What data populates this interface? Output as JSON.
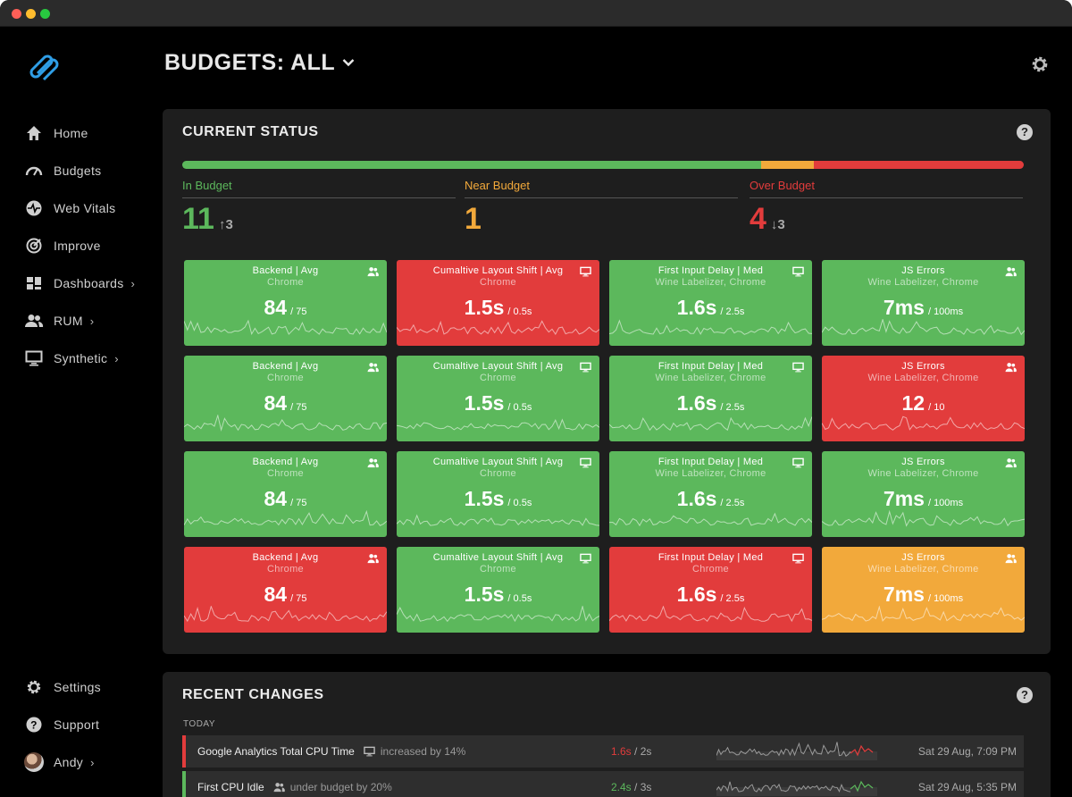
{
  "header": {
    "title": "BUDGETS: ALL"
  },
  "sidebar": {
    "items": [
      {
        "label": "Home",
        "icon": "home-icon"
      },
      {
        "label": "Budgets",
        "icon": "gauge-icon"
      },
      {
        "label": "Web Vitals",
        "icon": "pulse-icon"
      },
      {
        "label": "Improve",
        "icon": "target-icon"
      },
      {
        "label": "Dashboards",
        "icon": "dashboard-icon",
        "chevron": "›"
      },
      {
        "label": "RUM",
        "icon": "users-icon",
        "chevron": "›"
      },
      {
        "label": "Synthetic",
        "icon": "monitor-icon",
        "chevron": "›"
      }
    ],
    "bottom": [
      {
        "label": "Settings",
        "icon": "gear-icon"
      },
      {
        "label": "Support",
        "icon": "help-icon"
      },
      {
        "label": "Andy",
        "icon": "avatar",
        "chevron": "›"
      }
    ]
  },
  "status": {
    "title": "CURRENT STATUS",
    "bar": {
      "in": 11,
      "near": 1,
      "over": 4
    },
    "colors": {
      "green": "#5cb85c",
      "orange": "#f2a93b",
      "red": "#e23c3c"
    },
    "in_budget": {
      "label": "In Budget",
      "count": "11",
      "delta_arrow": "↑",
      "delta": "3"
    },
    "near_budget": {
      "label": "Near Budget",
      "count": "1"
    },
    "over_budget": {
      "label": "Over Budget",
      "count": "4",
      "delta_arrow": "↓",
      "delta": "3"
    }
  },
  "tiles": [
    {
      "title": "Backend | Avg",
      "sub": "Chrome",
      "value": "84",
      "budget": "/ 75",
      "status": "green",
      "icon": "users-icon"
    },
    {
      "title": "Cumaltive Layout Shift | Avg",
      "sub": "Chrome",
      "value": "1.5s",
      "budget": "/ 0.5s",
      "status": "red",
      "icon": "monitor-icon"
    },
    {
      "title": "First Input Delay | Med",
      "sub": "Wine Labelizer, Chrome",
      "value": "1.6s",
      "budget": "/ 2.5s",
      "status": "green",
      "icon": "monitor-icon"
    },
    {
      "title": "JS Errors",
      "sub": "Wine Labelizer, Chrome",
      "value": "7ms",
      "budget": "/ 100ms",
      "status": "green",
      "icon": "users-icon"
    },
    {
      "title": "Backend | Avg",
      "sub": "Chrome",
      "value": "84",
      "budget": "/ 75",
      "status": "green",
      "icon": "users-icon"
    },
    {
      "title": "Cumaltive Layout Shift | Avg",
      "sub": "Chrome",
      "value": "1.5s",
      "budget": "/ 0.5s",
      "status": "green",
      "icon": "monitor-icon"
    },
    {
      "title": "First Input Delay | Med",
      "sub": "Wine Labelizer, Chrome",
      "value": "1.6s",
      "budget": "/ 2.5s",
      "status": "green",
      "icon": "monitor-icon"
    },
    {
      "title": "JS Errors",
      "sub": "Wine Labelizer, Chrome",
      "value": "12",
      "budget": "/ 10",
      "status": "red",
      "icon": "users-icon"
    },
    {
      "title": "Backend | Avg",
      "sub": "Chrome",
      "value": "84",
      "budget": "/ 75",
      "status": "green",
      "icon": "users-icon"
    },
    {
      "title": "Cumaltive Layout Shift | Avg",
      "sub": "Chrome",
      "value": "1.5s",
      "budget": "/ 0.5s",
      "status": "green",
      "icon": "monitor-icon"
    },
    {
      "title": "First Input Delay | Med",
      "sub": "Wine Labelizer, Chrome",
      "value": "1.6s",
      "budget": "/ 2.5s",
      "status": "green",
      "icon": "monitor-icon"
    },
    {
      "title": "JS Errors",
      "sub": "Wine Labelizer, Chrome",
      "value": "7ms",
      "budget": "/ 100ms",
      "status": "green",
      "icon": "users-icon"
    },
    {
      "title": "Backend | Avg",
      "sub": "Chrome",
      "value": "84",
      "budget": "/ 75",
      "status": "red",
      "icon": "users-icon"
    },
    {
      "title": "Cumaltive Layout Shift | Avg",
      "sub": "Chrome",
      "value": "1.5s",
      "budget": "/ 0.5s",
      "status": "green",
      "icon": "monitor-icon"
    },
    {
      "title": "First Input Delay | Med",
      "sub": "Chrome",
      "value": "1.6s",
      "budget": "/ 2.5s",
      "status": "red",
      "icon": "monitor-icon"
    },
    {
      "title": "JS Errors",
      "sub": "Wine Labelizer, Chrome",
      "value": "7ms",
      "budget": "/ 100ms",
      "status": "orange",
      "icon": "users-icon"
    }
  ],
  "recent": {
    "title": "RECENT CHANGES",
    "group": "TODAY",
    "rows": [
      {
        "name": "Google Analytics Total CPU Time",
        "icon": "monitor-icon",
        "desc": "increased by 14%",
        "value": "1.6s",
        "budget": "/ 2s",
        "status": "red",
        "date": "Sat 29 Aug, 7:09 PM"
      },
      {
        "name": "First CPU Idle",
        "icon": "users-icon",
        "desc": "under budget by 20%",
        "value": "2.4s",
        "budget": "/ 3s",
        "status": "green",
        "date": "Sat 29 Aug, 5:35 PM"
      }
    ]
  }
}
